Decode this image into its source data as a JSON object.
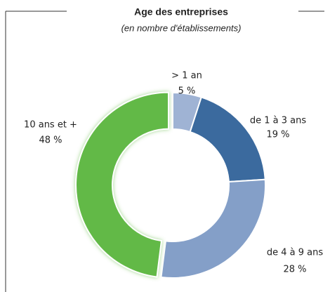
{
  "chart_data": {
    "type": "donut",
    "title": "Age des entreprises",
    "subtitle": "(en nombre d'établissements)",
    "categories": [
      "> 1 an",
      "de 1 à 3 ans",
      "de 4 à 9 ans",
      "10 ans et +"
    ],
    "values": [
      5,
      19,
      28,
      48
    ],
    "value_labels": [
      "5 %",
      "19 %",
      "28 %",
      "48 %"
    ],
    "colors": [
      "#9fb3d4",
      "#3b6a9e",
      "#849fc8",
      "#62b946"
    ]
  }
}
